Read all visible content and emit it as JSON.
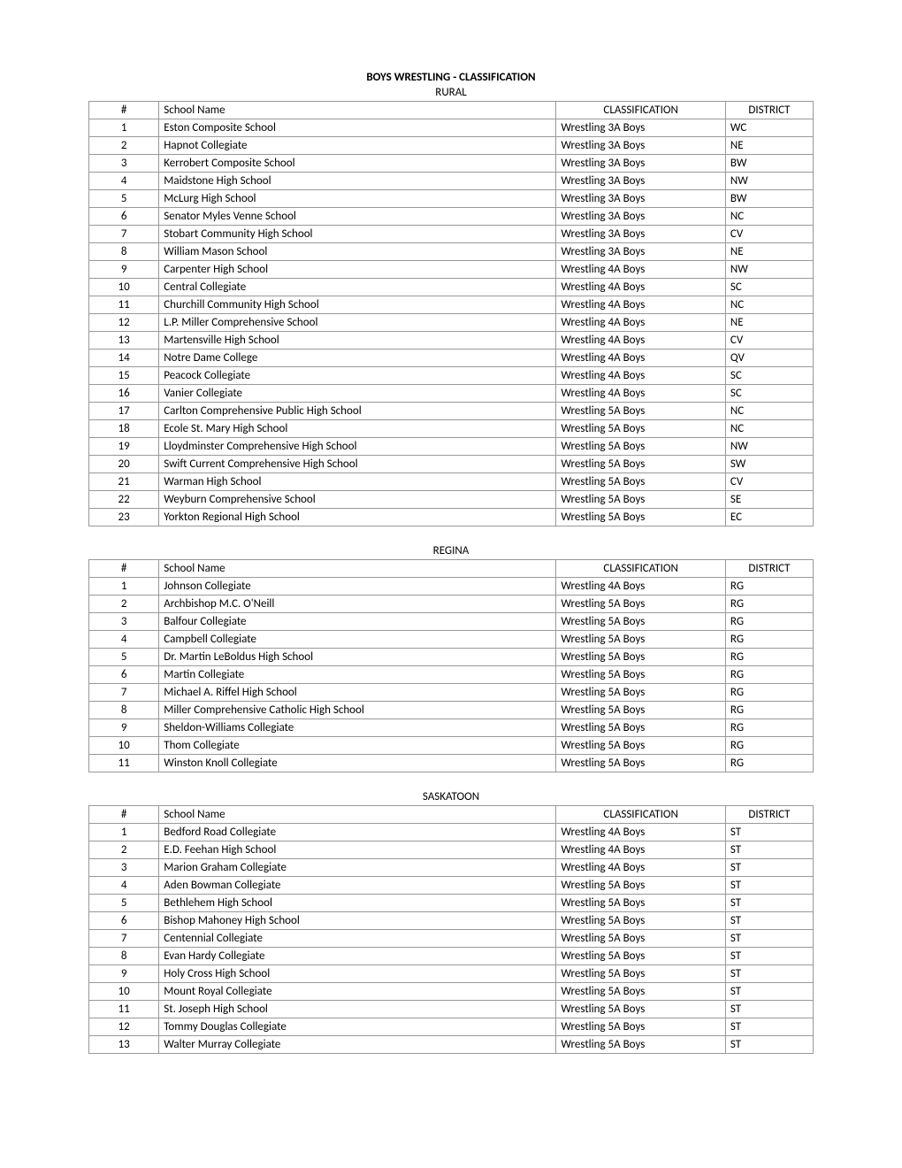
{
  "pageTitle": "BOYS WRESTLING - CLASSIFICATION",
  "headers": {
    "num": "#",
    "school": "School Name",
    "classification": "CLASSIFICATION",
    "district": "DISTRICT"
  },
  "sections": [
    {
      "title": "RURAL",
      "rows": [
        {
          "num": "1",
          "school": "Eston Composite School",
          "classification": "Wrestling 3A Boys",
          "district": "WC"
        },
        {
          "num": "2",
          "school": "Hapnot Collegiate",
          "classification": "Wrestling 3A Boys",
          "district": "NE"
        },
        {
          "num": "3",
          "school": "Kerrobert Composite School",
          "classification": "Wrestling 3A Boys",
          "district": "BW"
        },
        {
          "num": "4",
          "school": "Maidstone High School",
          "classification": "Wrestling 3A Boys",
          "district": "NW"
        },
        {
          "num": "5",
          "school": "McLurg High School",
          "classification": "Wrestling 3A Boys",
          "district": "BW"
        },
        {
          "num": "6",
          "school": "Senator Myles Venne School",
          "classification": "Wrestling 3A Boys",
          "district": "NC"
        },
        {
          "num": "7",
          "school": "Stobart Community High School",
          "classification": "Wrestling 3A Boys",
          "district": "CV"
        },
        {
          "num": "8",
          "school": "William Mason School",
          "classification": "Wrestling 3A Boys",
          "district": "NE"
        },
        {
          "num": "9",
          "school": "Carpenter High School",
          "classification": "Wrestling 4A Boys",
          "district": "NW"
        },
        {
          "num": "10",
          "school": "Central Collegiate",
          "classification": "Wrestling 4A Boys",
          "district": "SC"
        },
        {
          "num": "11",
          "school": "Churchill Community High School",
          "classification": "Wrestling 4A Boys",
          "district": "NC"
        },
        {
          "num": "12",
          "school": "L.P. Miller Comprehensive School",
          "classification": "Wrestling 4A Boys",
          "district": "NE"
        },
        {
          "num": "13",
          "school": "Martensville High School",
          "classification": "Wrestling 4A Boys",
          "district": "CV"
        },
        {
          "num": "14",
          "school": "Notre Dame College",
          "classification": "Wrestling 4A Boys",
          "district": "QV"
        },
        {
          "num": "15",
          "school": "Peacock Collegiate",
          "classification": "Wrestling 4A Boys",
          "district": "SC"
        },
        {
          "num": "16",
          "school": "Vanier Collegiate",
          "classification": "Wrestling 4A Boys",
          "district": "SC"
        },
        {
          "num": "17",
          "school": "Carlton Comprehensive Public High School",
          "classification": "Wrestling 5A Boys",
          "district": "NC"
        },
        {
          "num": "18",
          "school": "Ecole St. Mary High School",
          "classification": "Wrestling 5A Boys",
          "district": "NC"
        },
        {
          "num": "19",
          "school": "Lloydminster Comprehensive High School",
          "classification": "Wrestling 5A Boys",
          "district": "NW"
        },
        {
          "num": "20",
          "school": "Swift Current Comprehensive High School",
          "classification": "Wrestling 5A Boys",
          "district": "SW"
        },
        {
          "num": "21",
          "school": "Warman High School",
          "classification": "Wrestling 5A Boys",
          "district": "CV"
        },
        {
          "num": "22",
          "school": "Weyburn Comprehensive School",
          "classification": "Wrestling 5A Boys",
          "district": "SE"
        },
        {
          "num": "23",
          "school": "Yorkton Regional High School",
          "classification": "Wrestling 5A Boys",
          "district": "EC"
        }
      ]
    },
    {
      "title": "REGINA",
      "rows": [
        {
          "num": "1",
          "school": "Johnson Collegiate",
          "classification": "Wrestling 4A Boys",
          "district": "RG"
        },
        {
          "num": "2",
          "school": "Archbishop M.C. O'Neill",
          "classification": "Wrestling 5A Boys",
          "district": "RG"
        },
        {
          "num": "3",
          "school": "Balfour Collegiate",
          "classification": "Wrestling 5A Boys",
          "district": "RG"
        },
        {
          "num": "4",
          "school": "Campbell Collegiate",
          "classification": "Wrestling 5A Boys",
          "district": "RG"
        },
        {
          "num": "5",
          "school": "Dr. Martin LeBoldus High School",
          "classification": "Wrestling 5A Boys",
          "district": "RG"
        },
        {
          "num": "6",
          "school": "Martin Collegiate",
          "classification": "Wrestling 5A Boys",
          "district": "RG"
        },
        {
          "num": "7",
          "school": "Michael A. Riffel High School",
          "classification": "Wrestling 5A Boys",
          "district": "RG"
        },
        {
          "num": "8",
          "school": "Miller Comprehensive Catholic High School",
          "classification": "Wrestling 5A Boys",
          "district": "RG"
        },
        {
          "num": "9",
          "school": "Sheldon-Williams Collegiate",
          "classification": "Wrestling 5A Boys",
          "district": "RG"
        },
        {
          "num": "10",
          "school": "Thom Collegiate",
          "classification": "Wrestling 5A Boys",
          "district": "RG"
        },
        {
          "num": "11",
          "school": "Winston Knoll Collegiate",
          "classification": "Wrestling 5A Boys",
          "district": "RG"
        }
      ]
    },
    {
      "title": "SASKATOON",
      "rows": [
        {
          "num": "1",
          "school": "Bedford Road Collegiate",
          "classification": "Wrestling 4A Boys",
          "district": "ST"
        },
        {
          "num": "2",
          "school": "E.D. Feehan High School",
          "classification": "Wrestling 4A Boys",
          "district": "ST"
        },
        {
          "num": "3",
          "school": "Marion Graham Collegiate",
          "classification": "Wrestling 4A Boys",
          "district": "ST"
        },
        {
          "num": "4",
          "school": "Aden Bowman Collegiate",
          "classification": "Wrestling 5A Boys",
          "district": "ST"
        },
        {
          "num": "5",
          "school": "Bethlehem High School",
          "classification": "Wrestling 5A Boys",
          "district": "ST"
        },
        {
          "num": "6",
          "school": "Bishop Mahoney High School",
          "classification": "Wrestling 5A Boys",
          "district": "ST"
        },
        {
          "num": "7",
          "school": "Centennial Collegiate",
          "classification": "Wrestling 5A Boys",
          "district": "ST"
        },
        {
          "num": "8",
          "school": "Evan Hardy Collegiate",
          "classification": "Wrestling 5A Boys",
          "district": "ST"
        },
        {
          "num": "9",
          "school": "Holy Cross High School",
          "classification": "Wrestling 5A Boys",
          "district": "ST"
        },
        {
          "num": "10",
          "school": "Mount Royal Collegiate",
          "classification": "Wrestling 5A Boys",
          "district": "ST"
        },
        {
          "num": "11",
          "school": "St. Joseph High School",
          "classification": "Wrestling 5A Boys",
          "district": "ST"
        },
        {
          "num": "12",
          "school": "Tommy Douglas Collegiate",
          "classification": "Wrestling 5A Boys",
          "district": "ST"
        },
        {
          "num": "13",
          "school": "Walter Murray Collegiate",
          "classification": "Wrestling 5A Boys",
          "district": "ST"
        }
      ]
    }
  ]
}
